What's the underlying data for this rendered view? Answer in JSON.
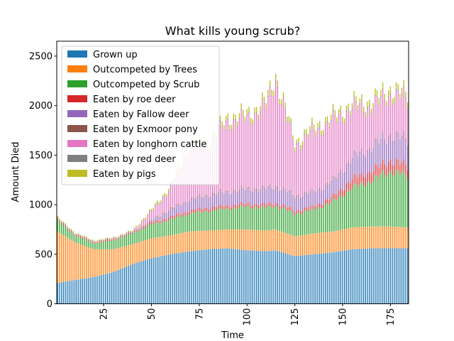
{
  "chart_data": {
    "type": "bar",
    "stacked": true,
    "title": "What kills young scrub?",
    "xlabel": "Time",
    "ylabel": "Amount Died",
    "ylim": [
      0,
      2650
    ],
    "xlim": [
      0.5,
      184.5
    ],
    "yticks": [
      0,
      500,
      1000,
      1500,
      2000,
      2500
    ],
    "xticks": [
      25,
      50,
      75,
      100,
      125,
      150,
      175
    ],
    "x_tick_rotation": 90,
    "legend_position": "top-left",
    "grid": false,
    "x_start": 1,
    "x_end": 184,
    "series": [
      {
        "name": "Grown up",
        "color": "#1f77b4"
      },
      {
        "name": "Outcompeted by Trees",
        "color": "#ff7f0e"
      },
      {
        "name": "Outcompeted by Scrub",
        "color": "#2ca02c"
      },
      {
        "name": "Eaten by roe deer",
        "color": "#d62728"
      },
      {
        "name": "Eaten by Fallow deer",
        "color": "#9467bd"
      },
      {
        "name": "Eaten by Exmoor pony",
        "color": "#8c564b"
      },
      {
        "name": "Eaten by longhorn cattle",
        "color": "#e377c2"
      },
      {
        "name": "Eaten by red deer",
        "color": "#7f7f7f"
      },
      {
        "name": "Eaten by pigs",
        "color": "#bcbd22"
      }
    ],
    "key_values": [
      {
        "x": 1,
        "values": [
          210,
          520,
          110,
          10,
          5,
          5,
          0,
          0,
          15
        ]
      },
      {
        "x": 10,
        "values": [
          240,
          380,
          70,
          10,
          5,
          5,
          0,
          0,
          10
        ]
      },
      {
        "x": 20,
        "values": [
          270,
          280,
          60,
          10,
          5,
          5,
          0,
          0,
          10
        ]
      },
      {
        "x": 30,
        "values": [
          320,
          230,
          90,
          10,
          5,
          5,
          0,
          0,
          10
        ]
      },
      {
        "x": 40,
        "values": [
          400,
          200,
          110,
          10,
          5,
          5,
          0,
          0,
          10
        ]
      },
      {
        "x": 50,
        "values": [
          460,
          200,
          140,
          20,
          10,
          10,
          80,
          10,
          20
        ]
      },
      {
        "x": 60,
        "values": [
          500,
          190,
          160,
          25,
          70,
          10,
          200,
          10,
          30
        ]
      },
      {
        "x": 70,
        "values": [
          530,
          200,
          180,
          30,
          100,
          10,
          500,
          10,
          40
        ]
      },
      {
        "x": 80,
        "values": [
          550,
          190,
          200,
          30,
          120,
          10,
          500,
          10,
          40
        ]
      },
      {
        "x": 90,
        "values": [
          560,
          190,
          210,
          30,
          130,
          10,
          700,
          10,
          50
        ]
      },
      {
        "x": 100,
        "values": [
          540,
          210,
          230,
          30,
          140,
          10,
          700,
          10,
          50
        ]
      },
      {
        "x": 110,
        "values": [
          530,
          210,
          230,
          30,
          150,
          10,
          820,
          10,
          60
        ]
      },
      {
        "x": 115,
        "values": [
          540,
          210,
          240,
          30,
          160,
          10,
          1060,
          10,
          60
        ]
      },
      {
        "x": 125,
        "values": [
          480,
          200,
          230,
          30,
          140,
          10,
          500,
          10,
          40
        ]
      },
      {
        "x": 135,
        "values": [
          500,
          210,
          240,
          30,
          140,
          10,
          600,
          10,
          50
        ]
      },
      {
        "x": 145,
        "values": [
          520,
          210,
          300,
          50,
          150,
          10,
          600,
          10,
          50
        ]
      },
      {
        "x": 155,
        "values": [
          550,
          220,
          400,
          90,
          200,
          10,
          500,
          10,
          50
        ]
      },
      {
        "x": 165,
        "values": [
          560,
          220,
          460,
          100,
          230,
          10,
          400,
          10,
          60
        ]
      },
      {
        "x": 175,
        "values": [
          560,
          220,
          560,
          110,
          250,
          10,
          400,
          10,
          60
        ]
      },
      {
        "x": 184,
        "values": [
          560,
          210,
          520,
          100,
          250,
          10,
          400,
          10,
          60
        ]
      }
    ]
  }
}
